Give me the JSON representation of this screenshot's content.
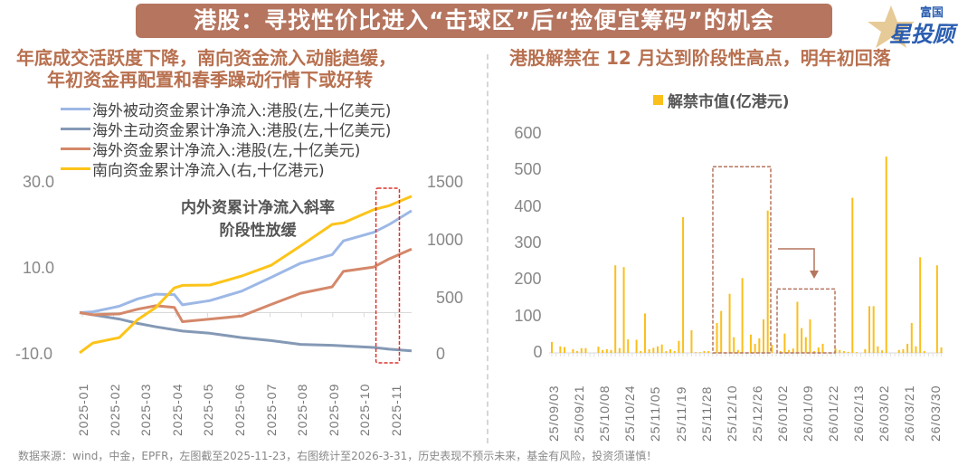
{
  "banner": {
    "title": "港股：寻找性价比进入“击球区”后“捡便宜筹码”的机会"
  },
  "logo": {
    "text_top": "富国",
    "text_main": "星投顾"
  },
  "colors": {
    "banner": "#b5755f",
    "subtitle": "#b8704f",
    "passive": "#9db8e6",
    "active": "#8499b5",
    "overseas": "#d4886a",
    "southbound": "#fcc419",
    "bars": "#fbbf1c",
    "highlight_red": "#d9342b",
    "box_brown": "#b5755f"
  },
  "footer": "数据来源：wind，中金，EPFR，左图截至2025-11-23，右图统计至2026-3-31，历史表现不预示未来，基金有风险，投资须谨慎！",
  "chart_data": [
    {
      "type": "line",
      "title": "年底成交活跃度下降，南向资金流入动能趋缓，年初资金再配置和春季躁动行情下或好转",
      "title_lines": [
        "年底成交活跃度下降，南向资金流入动能趋缓，",
        "年初资金再配置和春季躁动行情下或好转"
      ],
      "annotation": [
        "内外资累计净流入斜率",
        "阶段性放缓"
      ],
      "legend_placement": "top-left",
      "grid": false,
      "x_tick_labels": [
        "2025-01",
        "2025-02",
        "2025-03",
        "2025-04",
        "2025-05",
        "2025-06",
        "2025-07",
        "2025-08",
        "2025-09",
        "2025-10",
        "2025-11"
      ],
      "x_range": [
        "2025-01-01",
        "2025-11-23"
      ],
      "highlight_range": [
        "2025-10-19",
        "2025-11-11"
      ],
      "y_left": {
        "ylim": [
          -10,
          30
        ],
        "ticks": [
          "30.0",
          "10.0",
          "-10.0"
        ]
      },
      "y_right": {
        "ylim": [
          0,
          1500
        ],
        "ticks": [
          "1500",
          "1000",
          "500",
          "0"
        ]
      },
      "series": [
        {
          "name": "海外被动资金累计净流入:港股(左,十亿美元)",
          "axis": "left",
          "color_key": "passive",
          "x": [
            "2025-01-01",
            "2025-01-14",
            "2025-02-09",
            "2025-02-27",
            "2025-03-17",
            "2025-04-04",
            "2025-04-12",
            "2025-05-09",
            "2025-06-09",
            "2025-07-08",
            "2025-08-06",
            "2025-09-06",
            "2025-09-17",
            "2025-10-17",
            "2025-11-01",
            "2025-11-23"
          ],
          "y": [
            0,
            0.2,
            1.5,
            3.2,
            4.3,
            4.2,
            1.8,
            2.8,
            5.0,
            8.2,
            11.5,
            13.5,
            16.7,
            18.7,
            20.5,
            23.7
          ]
        },
        {
          "name": "海外主动资金累计净流入:港股(左,十亿美元)",
          "axis": "left",
          "color_key": "active",
          "x": [
            "2025-01-01",
            "2025-01-14",
            "2025-02-09",
            "2025-02-27",
            "2025-03-17",
            "2025-04-12",
            "2025-05-09",
            "2025-06-09",
            "2025-07-08",
            "2025-08-06",
            "2025-09-06",
            "2025-10-17",
            "2025-11-01",
            "2025-11-23"
          ],
          "y": [
            0,
            -0.5,
            -1.5,
            -2.5,
            -3.3,
            -4.3,
            -4.8,
            -5.8,
            -6.5,
            -7.4,
            -7.6,
            -8.1,
            -8.5,
            -8.9
          ]
        },
        {
          "name": "海外资金累计净流入:港股(左,十亿美元)",
          "axis": "left",
          "color_key": "overseas",
          "x": [
            "2025-01-01",
            "2025-01-14",
            "2025-02-09",
            "2025-02-27",
            "2025-03-17",
            "2025-04-04",
            "2025-04-12",
            "2025-05-09",
            "2025-06-09",
            "2025-07-08",
            "2025-08-06",
            "2025-09-06",
            "2025-09-17",
            "2025-10-17",
            "2025-11-01",
            "2025-11-23"
          ],
          "y": [
            0,
            -0.5,
            -0.3,
            0.8,
            1.6,
            1.2,
            -2.1,
            -1.5,
            -0.8,
            1.9,
            4.5,
            6.0,
            9.6,
            10.6,
            12.5,
            14.8
          ]
        },
        {
          "name": "南向资金累计净流入(右,十亿港元)",
          "axis": "right",
          "color_key": "southbound",
          "x": [
            "2025-01-01",
            "2025-01-14",
            "2025-02-09",
            "2025-02-27",
            "2025-03-17",
            "2025-04-04",
            "2025-04-12",
            "2025-05-09",
            "2025-06-09",
            "2025-07-08",
            "2025-08-06",
            "2025-09-06",
            "2025-09-17",
            "2025-10-17",
            "2025-11-01",
            "2025-11-23"
          ],
          "y": [
            22,
            108,
            155,
            313,
            420,
            590,
            612,
            615,
            694,
            788,
            958,
            1146,
            1160,
            1276,
            1310,
            1392
          ]
        }
      ]
    },
    {
      "type": "bar",
      "title": "港股解禁在 12 月达到阶段性高点，明年初回落",
      "legend_placement": "top",
      "grid": false,
      "series": [
        {
          "name": "解禁市值(亿港元)",
          "color_key": "bars",
          "values": [
            30,
            0,
            18,
            16,
            0,
            10,
            5,
            13,
            13,
            0,
            0,
            17,
            8,
            10,
            8,
            240,
            13,
            235,
            37,
            0,
            36,
            5,
            108,
            10,
            14,
            18,
            23,
            5,
            10,
            5,
            33,
            372,
            0,
            62,
            2,
            2,
            5,
            5,
            0,
            82,
            115,
            0,
            162,
            43,
            8,
            205,
            0,
            50,
            25,
            40,
            92,
            390,
            22,
            0,
            5,
            53,
            8,
            12,
            140,
            68,
            43,
            92,
            5,
            15,
            25,
            0,
            0,
            12,
            8,
            5,
            3,
            425,
            2,
            0,
            10,
            128,
            128,
            18,
            7,
            538,
            0,
            0,
            8,
            10,
            25,
            82,
            18,
            262,
            5,
            0,
            0,
            240,
            15
          ]
        }
      ],
      "x_tick_labels": [
        "25/09/03",
        "25/09/21",
        "25/10/08",
        "25/10/24",
        "25/11/05",
        "25/11/19",
        "25/11/28",
        "25/12/10",
        "25/12/26",
        "26/01/02",
        "26/01/09",
        "26/01/22",
        "26/02/13",
        "26/03/02",
        "26/03/21",
        "26/03/30"
      ],
      "ylim": [
        0,
        600
      ],
      "y_ticks": [
        "600",
        "500",
        "400",
        "300",
        "200",
        "100",
        "0"
      ],
      "highlight_boxes": [
        {
          "from_label": "25/11/28",
          "to_label": "26/01/02",
          "upper_value": 510
        },
        {
          "from_label": "26/01/02",
          "to_label": "26/01/22",
          "upper_value": 175
        }
      ]
    }
  ]
}
